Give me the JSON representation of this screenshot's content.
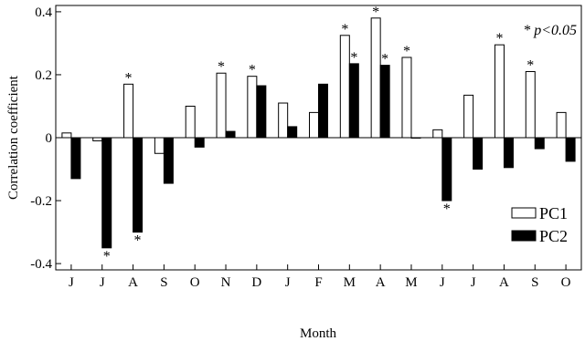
{
  "chart_data": {
    "type": "bar",
    "xlabel": "Month",
    "ylabel": "Correlation coefficient",
    "ylim": [
      -0.42,
      0.42
    ],
    "yticks": [
      -0.4,
      -0.2,
      0,
      0.2,
      0.4
    ],
    "ytick_labels": [
      "-0.4",
      "-0.2",
      "0",
      "0.2",
      "0.4"
    ],
    "categories": [
      "J",
      "J",
      "A",
      "S",
      "O",
      "N",
      "D",
      "J",
      "F",
      "M",
      "A",
      "M",
      "J",
      "J",
      "A",
      "S",
      "O"
    ],
    "series": [
      {
        "name": "PC1",
        "fill": "#ffffff",
        "values": [
          0.015,
          -0.01,
          0.17,
          -0.05,
          0.1,
          0.205,
          0.195,
          0.11,
          0.08,
          0.325,
          0.38,
          0.255,
          0.025,
          0.135,
          0.295,
          0.21,
          0.08
        ],
        "significant": [
          false,
          false,
          true,
          false,
          false,
          true,
          true,
          false,
          false,
          true,
          true,
          true,
          false,
          false,
          true,
          true,
          false
        ]
      },
      {
        "name": "PC2",
        "fill": "#000000",
        "values": [
          -0.13,
          -0.35,
          -0.3,
          -0.145,
          -0.03,
          0.02,
          0.165,
          0.035,
          0.17,
          0.235,
          0.23,
          0.0,
          -0.2,
          -0.1,
          -0.095,
          -0.035,
          -0.075
        ],
        "significant": [
          false,
          true,
          true,
          false,
          false,
          false,
          false,
          false,
          false,
          true,
          true,
          false,
          true,
          false,
          false,
          false,
          false
        ]
      }
    ],
    "significance_marker": "*",
    "significance_note": "* p<0.05",
    "legend_position": "bottom-right",
    "grid": false
  }
}
